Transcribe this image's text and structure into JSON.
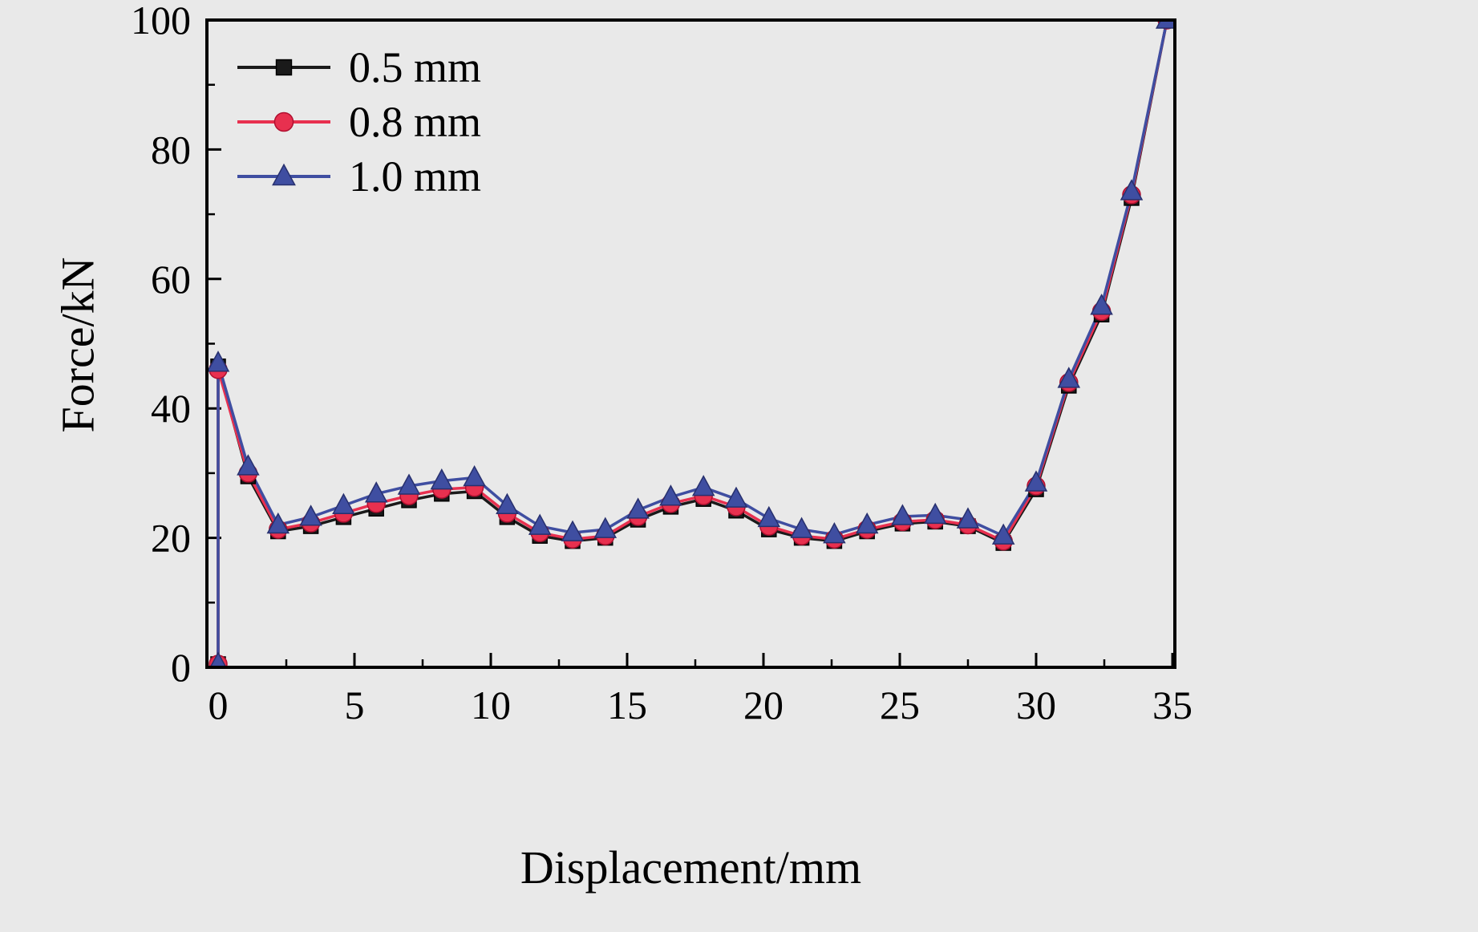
{
  "figure": {
    "background": "#e9e9e9",
    "plot_background": "#e9e9e9",
    "border_color": "#000000",
    "tick_color": "#000000",
    "text_color": "#000000"
  },
  "chart_data": {
    "type": "line",
    "title": "",
    "xlabel": "Displacement/mm",
    "ylabel": "Force/kN",
    "xlim": [
      0,
      35
    ],
    "ylim": [
      0,
      100
    ],
    "x_ticks": [
      0,
      5,
      10,
      15,
      20,
      25,
      30,
      35
    ],
    "y_ticks": [
      0,
      20,
      40,
      60,
      80,
      100
    ],
    "x_minor_ticks": [
      2.5,
      7.5,
      12.5,
      17.5,
      22.5,
      27.5,
      32.5
    ],
    "y_minor_ticks": [
      10,
      30,
      50,
      70,
      90
    ],
    "grid": false,
    "legend_position": "top-left",
    "x": [
      0,
      0,
      1.1,
      2.2,
      3.4,
      4.6,
      5.8,
      7.0,
      8.2,
      9.4,
      10.6,
      11.8,
      13.0,
      14.2,
      15.4,
      16.6,
      17.8,
      19.0,
      20.2,
      21.4,
      22.6,
      23.8,
      25.1,
      26.3,
      27.5,
      28.8,
      30.0,
      31.2,
      32.4,
      33.5,
      34.8
    ],
    "series": [
      {
        "name": "0.5 mm",
        "color": "#1a1a1a",
        "edge": "#000000",
        "marker": "square",
        "values": [
          0.5,
          46.5,
          29.5,
          21.0,
          21.8,
          23.2,
          24.5,
          25.8,
          26.8,
          27.2,
          23.2,
          20.3,
          19.5,
          20.0,
          22.8,
          24.8,
          26.0,
          24.2,
          21.3,
          20.0,
          19.5,
          21.0,
          22.2,
          22.5,
          21.8,
          19.2,
          27.5,
          43.5,
          54.5,
          72.5,
          100
        ]
      },
      {
        "name": "0.8 mm",
        "color": "#e8304f",
        "edge": "#b01030",
        "marker": "circle",
        "values": [
          0.5,
          46.0,
          30.0,
          21.3,
          22.3,
          23.8,
          25.3,
          26.5,
          27.5,
          27.8,
          23.8,
          20.8,
          19.8,
          20.3,
          23.3,
          25.3,
          26.5,
          24.8,
          21.8,
          20.3,
          19.8,
          21.3,
          22.5,
          22.8,
          22.0,
          19.5,
          28.0,
          44.0,
          55.0,
          73.0,
          100
        ]
      },
      {
        "name": "1.0 mm",
        "color": "#3f4ea1",
        "edge": "#27306e",
        "marker": "triangle",
        "values": [
          0.5,
          47.0,
          31.0,
          22.0,
          23.2,
          25.0,
          26.8,
          28.0,
          28.8,
          29.3,
          25.0,
          21.8,
          20.8,
          21.3,
          24.3,
          26.3,
          27.8,
          26.0,
          23.0,
          21.3,
          20.5,
          22.0,
          23.3,
          23.5,
          22.8,
          20.3,
          28.5,
          44.5,
          55.8,
          73.5,
          100
        ]
      }
    ]
  }
}
